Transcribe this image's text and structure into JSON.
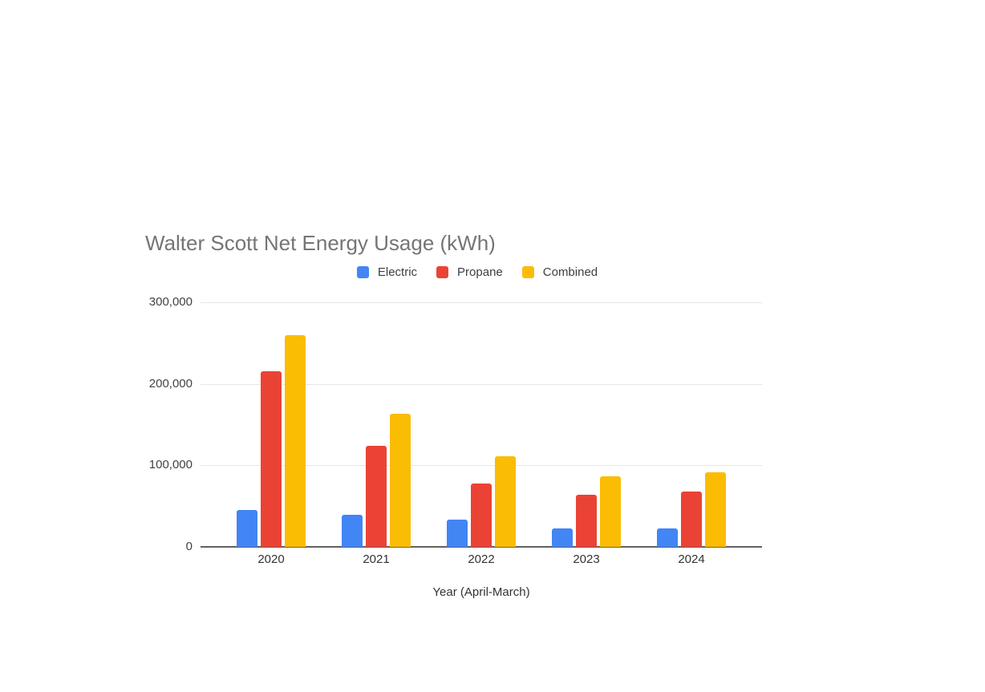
{
  "chart_data": {
    "type": "bar",
    "title": "Walter Scott Net Energy Usage (kWh)",
    "xlabel": "Year (April-March)",
    "ylabel": "",
    "categories": [
      "2020",
      "2021",
      "2022",
      "2023",
      "2024"
    ],
    "series": [
      {
        "name": "Electric",
        "color": "#4285F4",
        "values": [
          45000,
          39000,
          33000,
          23000,
          23000
        ]
      },
      {
        "name": "Propane",
        "color": "#EA4335",
        "values": [
          215000,
          124000,
          78000,
          64000,
          68000
        ]
      },
      {
        "name": "Combined",
        "color": "#FBBC04",
        "values": [
          260000,
          163000,
          111000,
          87000,
          91000
        ]
      }
    ],
    "ylim": [
      0,
      300000
    ],
    "yticks": [
      {
        "value": 0,
        "label": "0"
      },
      {
        "value": 100000,
        "label": "100,000"
      },
      {
        "value": 200000,
        "label": "200,000"
      },
      {
        "value": 300000,
        "label": "300,000"
      }
    ],
    "grid": true,
    "legend_position": "top"
  },
  "colors": {
    "title_text": "#757575",
    "legend_text": "#3c4043",
    "ytick_text": "#424242",
    "xtick_text": "#333333",
    "gridline": "#e6e6e6",
    "axis_line": "#616161",
    "background": "#ffffff"
  }
}
